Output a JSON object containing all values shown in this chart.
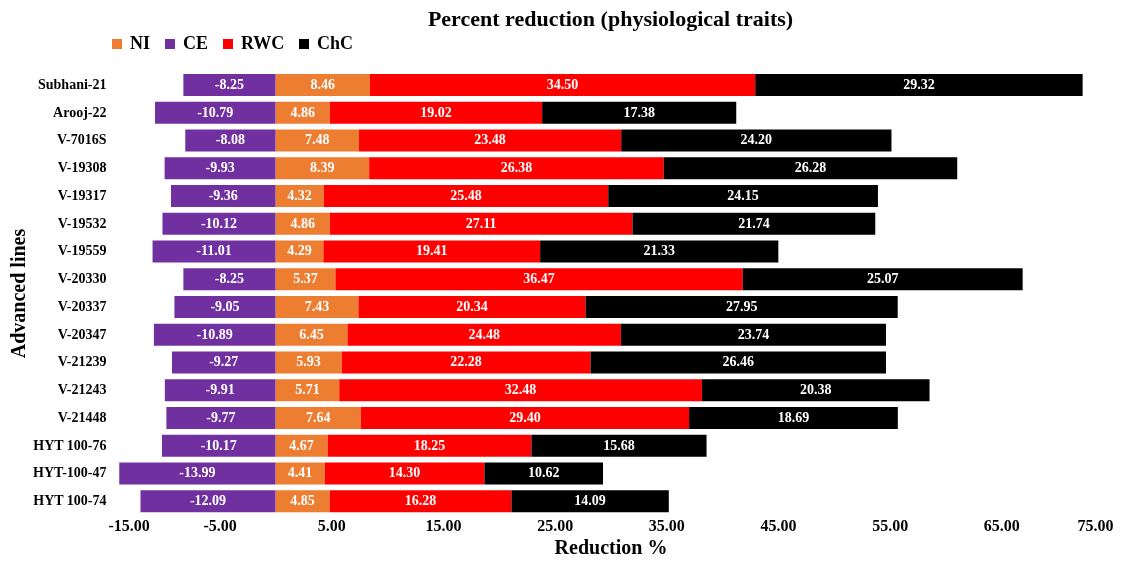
{
  "chart_data": {
    "type": "bar",
    "orientation": "horizontal",
    "stacked": true,
    "title": "Percent reduction (physiological traits)",
    "xlabel": "Reduction %",
    "ylabel": "Advanced lines",
    "categories": [
      "Subhani-21",
      "Arooj-22",
      "V-7016S",
      "V-19308",
      "V-19317",
      "V-19532",
      "V-19559",
      "V-20330",
      "V-20337",
      "V-20347",
      "V-21239",
      "V-21243",
      "V-21448",
      "HYT 100-76",
      "HYT-100-47",
      "HYT 100-74"
    ],
    "series": [
      {
        "name": "NI",
        "color": "#ed7d31",
        "values": [
          8.46,
          4.86,
          7.48,
          8.39,
          4.32,
          4.86,
          4.29,
          5.37,
          7.43,
          6.45,
          5.93,
          5.71,
          7.64,
          4.67,
          4.41,
          4.85
        ],
        "value_labels": [
          "8.46",
          "4.86",
          "7.48",
          "8.39",
          "4.32",
          "4.86",
          "4.29",
          "5.37",
          "7.43",
          "6.45",
          "5.93",
          "5.71",
          "7.64",
          "4.67",
          "4.41",
          "4.85"
        ]
      },
      {
        "name": "CE",
        "color": "#7030a0",
        "values": [
          -8.25,
          -10.79,
          -8.08,
          -9.93,
          -9.36,
          -10.12,
          -11.01,
          -8.25,
          -9.05,
          -10.89,
          -9.27,
          -9.91,
          -9.77,
          -10.17,
          -13.99,
          -12.09
        ],
        "value_labels": [
          "-8.25",
          "-10.79",
          "-8.08",
          "-9.93",
          "-9.36",
          "-10.12",
          "-11.01",
          "-8.25",
          "-9.05",
          "-10.89",
          "-9.27",
          "-9.91",
          "-9.77",
          "-10.17",
          "-13.99",
          "-12.09"
        ]
      },
      {
        "name": "RWC",
        "color": "#ff0000",
        "values": [
          34.5,
          19.02,
          23.48,
          26.38,
          25.48,
          27.11,
          19.41,
          36.47,
          20.34,
          24.48,
          22.28,
          32.48,
          29.4,
          18.25,
          14.3,
          16.28
        ],
        "value_labels": [
          "34.50",
          "19.02",
          "23.48",
          "26.38",
          "25.48",
          "27.11",
          "19.41",
          "36.47",
          "20.34",
          "24.48",
          "22.28",
          "32.48",
          "29.40",
          "18.25",
          "14.30",
          "16.28"
        ]
      },
      {
        "name": "ChC",
        "color": "#000000",
        "values": [
          29.32,
          17.38,
          24.2,
          26.28,
          24.15,
          21.74,
          21.33,
          25.07,
          27.95,
          23.74,
          26.46,
          20.38,
          18.69,
          15.68,
          10.62,
          14.09
        ],
        "value_labels": [
          "29.32",
          "17.38",
          "24.20",
          "26.28",
          "24.15",
          "21.74",
          "21.33",
          "25.07",
          "27.95",
          "23.74",
          "26.46",
          "20.38",
          "18.69",
          "15.68",
          "10.62",
          "14.09"
        ]
      }
    ],
    "xlim": [
      -15,
      75
    ],
    "xticks": [
      {
        "value": -15,
        "label": "-15.00"
      },
      {
        "value": -5,
        "label": "-5.00"
      },
      {
        "value": 5,
        "label": "5.00"
      },
      {
        "value": 15,
        "label": "15.00"
      },
      {
        "value": 25,
        "label": "25.00"
      },
      {
        "value": 35,
        "label": "35.00"
      },
      {
        "value": 45,
        "label": "45.00"
      },
      {
        "value": 55,
        "label": "55.00"
      },
      {
        "value": 65,
        "label": "65.00"
      },
      {
        "value": 75,
        "label": "75.00"
      }
    ],
    "grid": false,
    "legend": "top"
  }
}
